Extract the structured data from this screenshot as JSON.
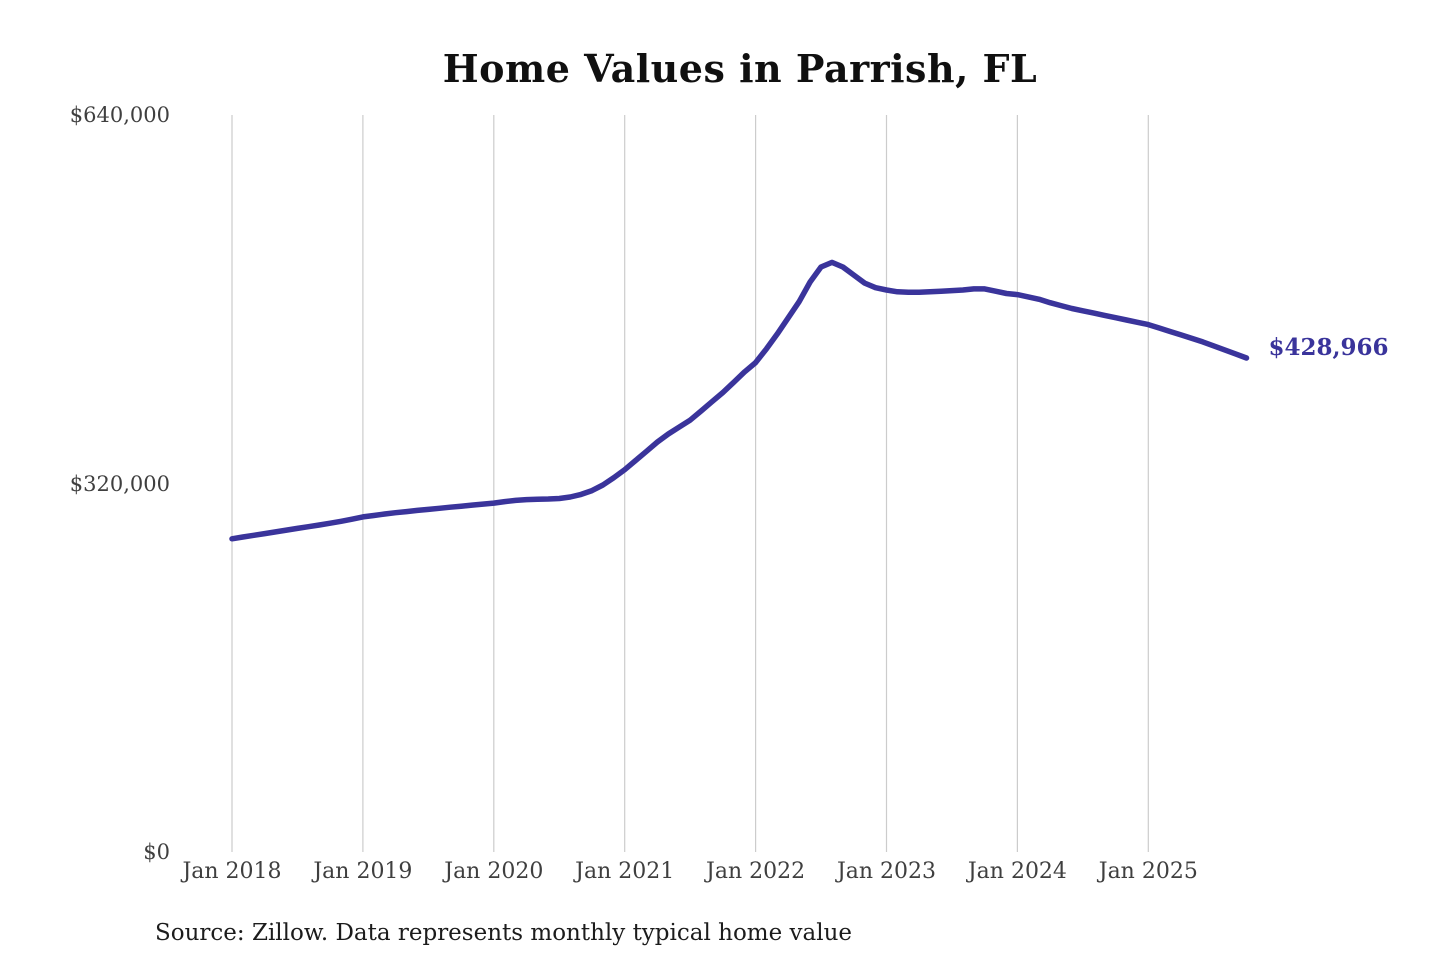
{
  "chart_data": {
    "type": "line",
    "title": "Home Values in Parrish, FL",
    "source_note": "Source: Zillow. Data represents monthly typical home value",
    "end_label": "$428,966",
    "latest_value": 428966,
    "line_color": "#3a349b",
    "grid_color": "#cccccc",
    "axis_text_color": "#3f3f3f",
    "legend": "none",
    "grid": "vertical-only",
    "ylim": [
      0,
      640000
    ],
    "x_axis": {
      "ticks": [
        "Jan 2018",
        "Jan 2019",
        "Jan 2020",
        "Jan 2021",
        "Jan 2022",
        "Jan 2023",
        "Jan 2024",
        "Jan 2025"
      ]
    },
    "y_axis": {
      "ticks": [
        {
          "label": "$0",
          "value": 0
        },
        {
          "label": "$320,000",
          "value": 320000
        },
        {
          "label": "$640,000",
          "value": 640000
        }
      ]
    },
    "series": [
      {
        "name": "Monthly typical home value (USD)",
        "start": "2018-01",
        "end": "2025-10",
        "frequency": "monthly",
        "values": [
          272000,
          273500,
          275000,
          276500,
          278000,
          279500,
          281000,
          282500,
          284000,
          285500,
          287200,
          289000,
          291000,
          292200,
          293500,
          294600,
          295600,
          296600,
          297500,
          298500,
          299400,
          300300,
          301200,
          302100,
          303000,
          304300,
          305300,
          306000,
          306400,
          306500,
          307000,
          308300,
          310500,
          313800,
          318700,
          325000,
          332000,
          340000,
          348000,
          356000,
          363000,
          369000,
          375000,
          383000,
          391000,
          399000,
          408000,
          417000,
          425000,
          437000,
          450000,
          464000,
          478000,
          495000,
          508000,
          512000,
          508000,
          501000,
          494000,
          490000,
          488000,
          486500,
          486000,
          486000,
          486500,
          487000,
          487500,
          488000,
          489000,
          489000,
          487000,
          485000,
          484000,
          482000,
          480000,
          477000,
          474500,
          472000,
          470000,
          468000,
          466000,
          464000,
          462000,
          460000,
          458000,
          455000,
          452000,
          449000,
          446000,
          443000,
          439500,
          436000,
          432500,
          428966
        ]
      }
    ]
  }
}
